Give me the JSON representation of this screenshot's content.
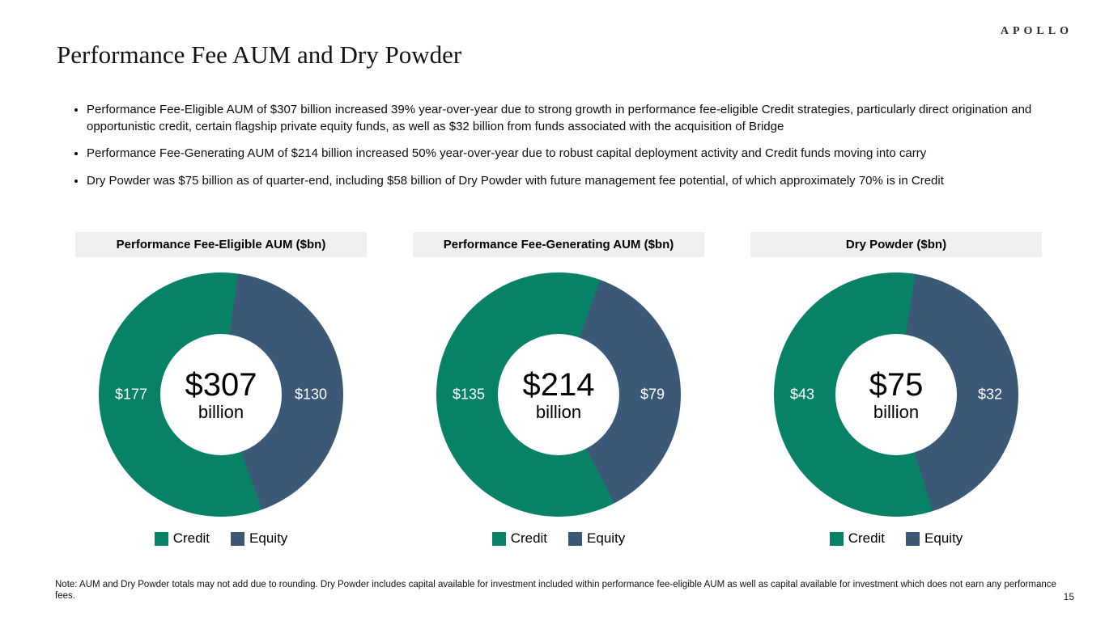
{
  "brand": {
    "logo": "APOLLO"
  },
  "page": {
    "title": "Performance Fee AUM and Dry Powder",
    "number": "15",
    "note": "Note: AUM and Dry Powder totals may not add due to rounding. Dry Powder includes capital available for investment included within performance fee-eligible AUM as well as capital available for investment which does not earn any performance fees."
  },
  "bullets": [
    "Performance Fee-Eligible AUM of $307 billion increased 39% year-over-year due to strong growth in performance fee-eligible Credit strategies, particularly direct origination and opportunistic credit, certain flagship private equity funds, as well as $32 billion from funds associated with the acquisition of Bridge",
    "Performance Fee-Generating AUM of $214 billion increased 50% year-over-year due to robust capital deployment activity and Credit funds moving into carry",
    "Dry Powder was $75 billion as of quarter-end, including $58 billion of Dry Powder with future management fee potential, of which approximately 70% is in Credit"
  ],
  "colors": {
    "credit": "#078266",
    "equity": "#3b5876",
    "header_bg": "#efefef"
  },
  "chart_data": [
    {
      "type": "pie",
      "title": "Performance Fee-Eligible AUM ($bn)",
      "center_value": "$307",
      "center_unit": "billion",
      "total": 307,
      "rotation": 8,
      "legend_position": "bottom",
      "segments": [
        {
          "name": "Credit",
          "value": 177,
          "label": "$177",
          "color": "#078266"
        },
        {
          "name": "Equity",
          "value": 130,
          "label": "$130",
          "color": "#3b5876"
        }
      ]
    },
    {
      "type": "pie",
      "title": "Performance Fee-Generating AUM ($bn)",
      "center_value": "$214",
      "center_unit": "billion",
      "total": 214,
      "rotation": 20,
      "legend_position": "bottom",
      "segments": [
        {
          "name": "Credit",
          "value": 135,
          "label": "$135",
          "color": "#078266"
        },
        {
          "name": "Equity",
          "value": 79,
          "label": "$79",
          "color": "#3b5876"
        }
      ]
    },
    {
      "type": "pie",
      "title": "Dry Powder ($bn)",
      "center_value": "$75",
      "center_unit": "billion",
      "total": 75,
      "rotation": 9,
      "legend_position": "bottom",
      "segments": [
        {
          "name": "Credit",
          "value": 43,
          "label": "$43",
          "color": "#078266"
        },
        {
          "name": "Equity",
          "value": 32,
          "label": "$32",
          "color": "#3b5876"
        }
      ]
    }
  ]
}
